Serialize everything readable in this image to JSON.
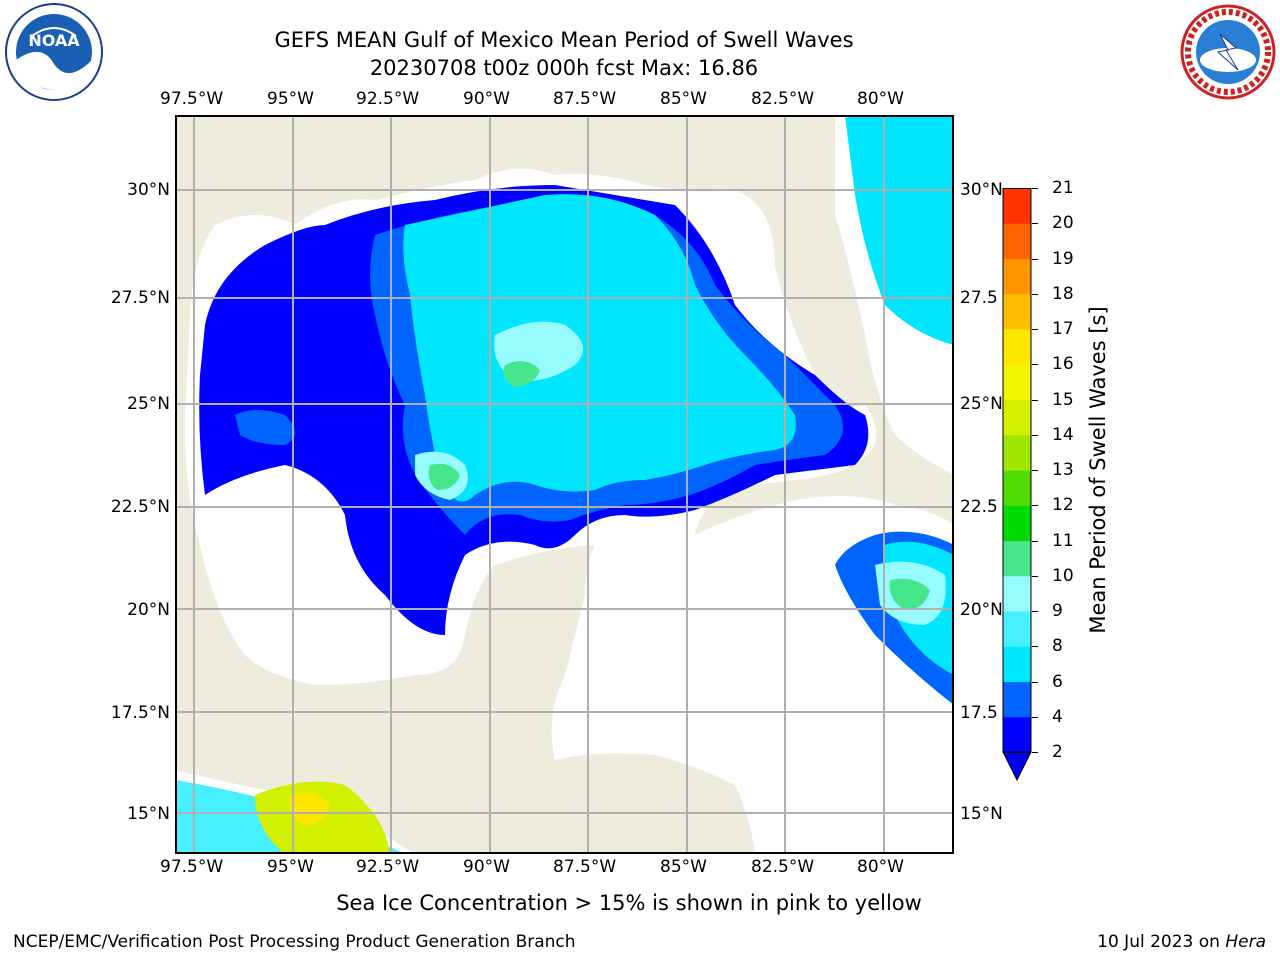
{
  "header": {
    "title_line1": "GEFS MEAN Gulf of Mexico Mean Period of Swell Waves",
    "title_line2": "20230708 t00z 000h fcst   Max: 16.86"
  },
  "logos": {
    "noaa_text": "NOAA",
    "noaa_ring_text": "NATIONAL OCEANIC AND ATMOSPHERIC ADMINISTRATION · U.S. DEPARTMENT OF COMMERCE",
    "nws_ring_text": "NATIONAL WEATHER SERVICE"
  },
  "map": {
    "lon_labels": [
      "97.5°W",
      "95°W",
      "92.5°W",
      "90°W",
      "87.5°W",
      "85°W",
      "82.5°W",
      "80°W"
    ],
    "lat_labels_left": [
      "30°N",
      "27.5°N",
      "25°N",
      "22.5°N",
      "20°N",
      "17.5°N",
      "15°N"
    ],
    "lat_labels_right": [
      "30°N",
      "27.5",
      "25°N",
      "22.5",
      "20°N",
      "17.5",
      "15°N"
    ],
    "land_color": "#eeecdc",
    "ocean_color": "#ffffff"
  },
  "colorbar": {
    "label": "Mean Period of Swell Waves [s]",
    "ticks": [
      "2",
      "4",
      "6",
      "8",
      "9",
      "10",
      "11",
      "12",
      "13",
      "14",
      "15",
      "16",
      "17",
      "18",
      "19",
      "20",
      "21"
    ],
    "colors": [
      "#0000ff",
      "#0064ff",
      "#00e6ff",
      "#46f0ff",
      "#96fcff",
      "#46e68c",
      "#00dc00",
      "#50dc00",
      "#a0e600",
      "#d2f000",
      "#f0f500",
      "#ffe600",
      "#ffbe00",
      "#ff9600",
      "#ff6400",
      "#ff3200",
      "#ff0000"
    ],
    "extend_color": "#0000ee"
  },
  "caption": "Sea Ice Concentration > 15% is shown in pink to yellow",
  "footer": {
    "left": "NCEP/EMC/Verification Post Processing Product Generation Branch",
    "right_date": "10 Jul 2023 on ",
    "right_host": "Hera"
  }
}
